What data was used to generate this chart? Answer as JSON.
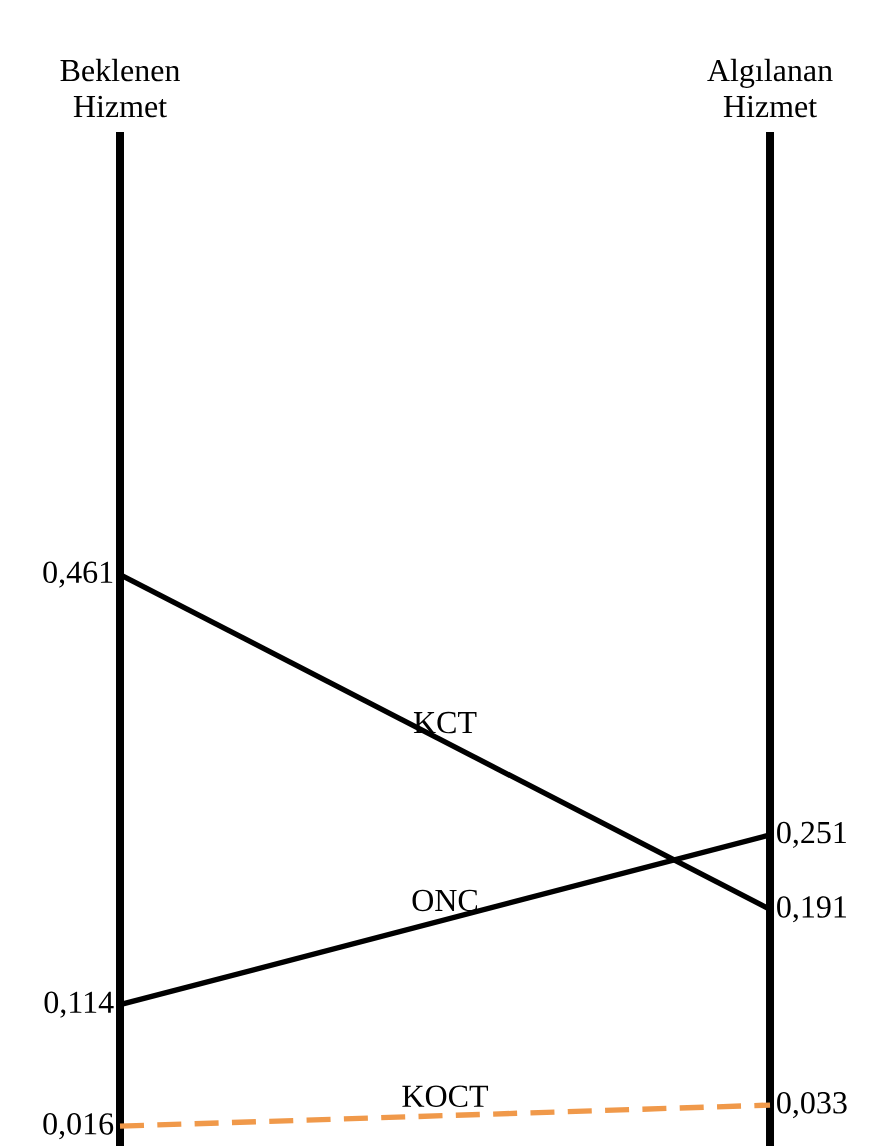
{
  "chart_data": {
    "type": "line",
    "categories": [
      "Beklenen\nHizmet",
      "Algılanan\nHizmet"
    ],
    "ylim": [
      -0.013,
      0.818
    ],
    "tick_labels": "x",
    "marker": "none",
    "series": [
      {
        "name": "KCT",
        "color": "#000000",
        "values": [
          0.461,
          0.191
        ],
        "value_labels": [
          "0,461",
          "0,191"
        ]
      },
      {
        "name": "ONC",
        "color": "#000000",
        "values": [
          0.114,
          0.251
        ],
        "value_labels": [
          "0,114",
          "0,251"
        ]
      },
      {
        "name": "KOCT",
        "color": "#f0994a",
        "values": [
          0.016,
          0.033
        ],
        "value_labels": [
          "0,016",
          "0,033"
        ],
        "line_style": "dashed"
      }
    ]
  }
}
